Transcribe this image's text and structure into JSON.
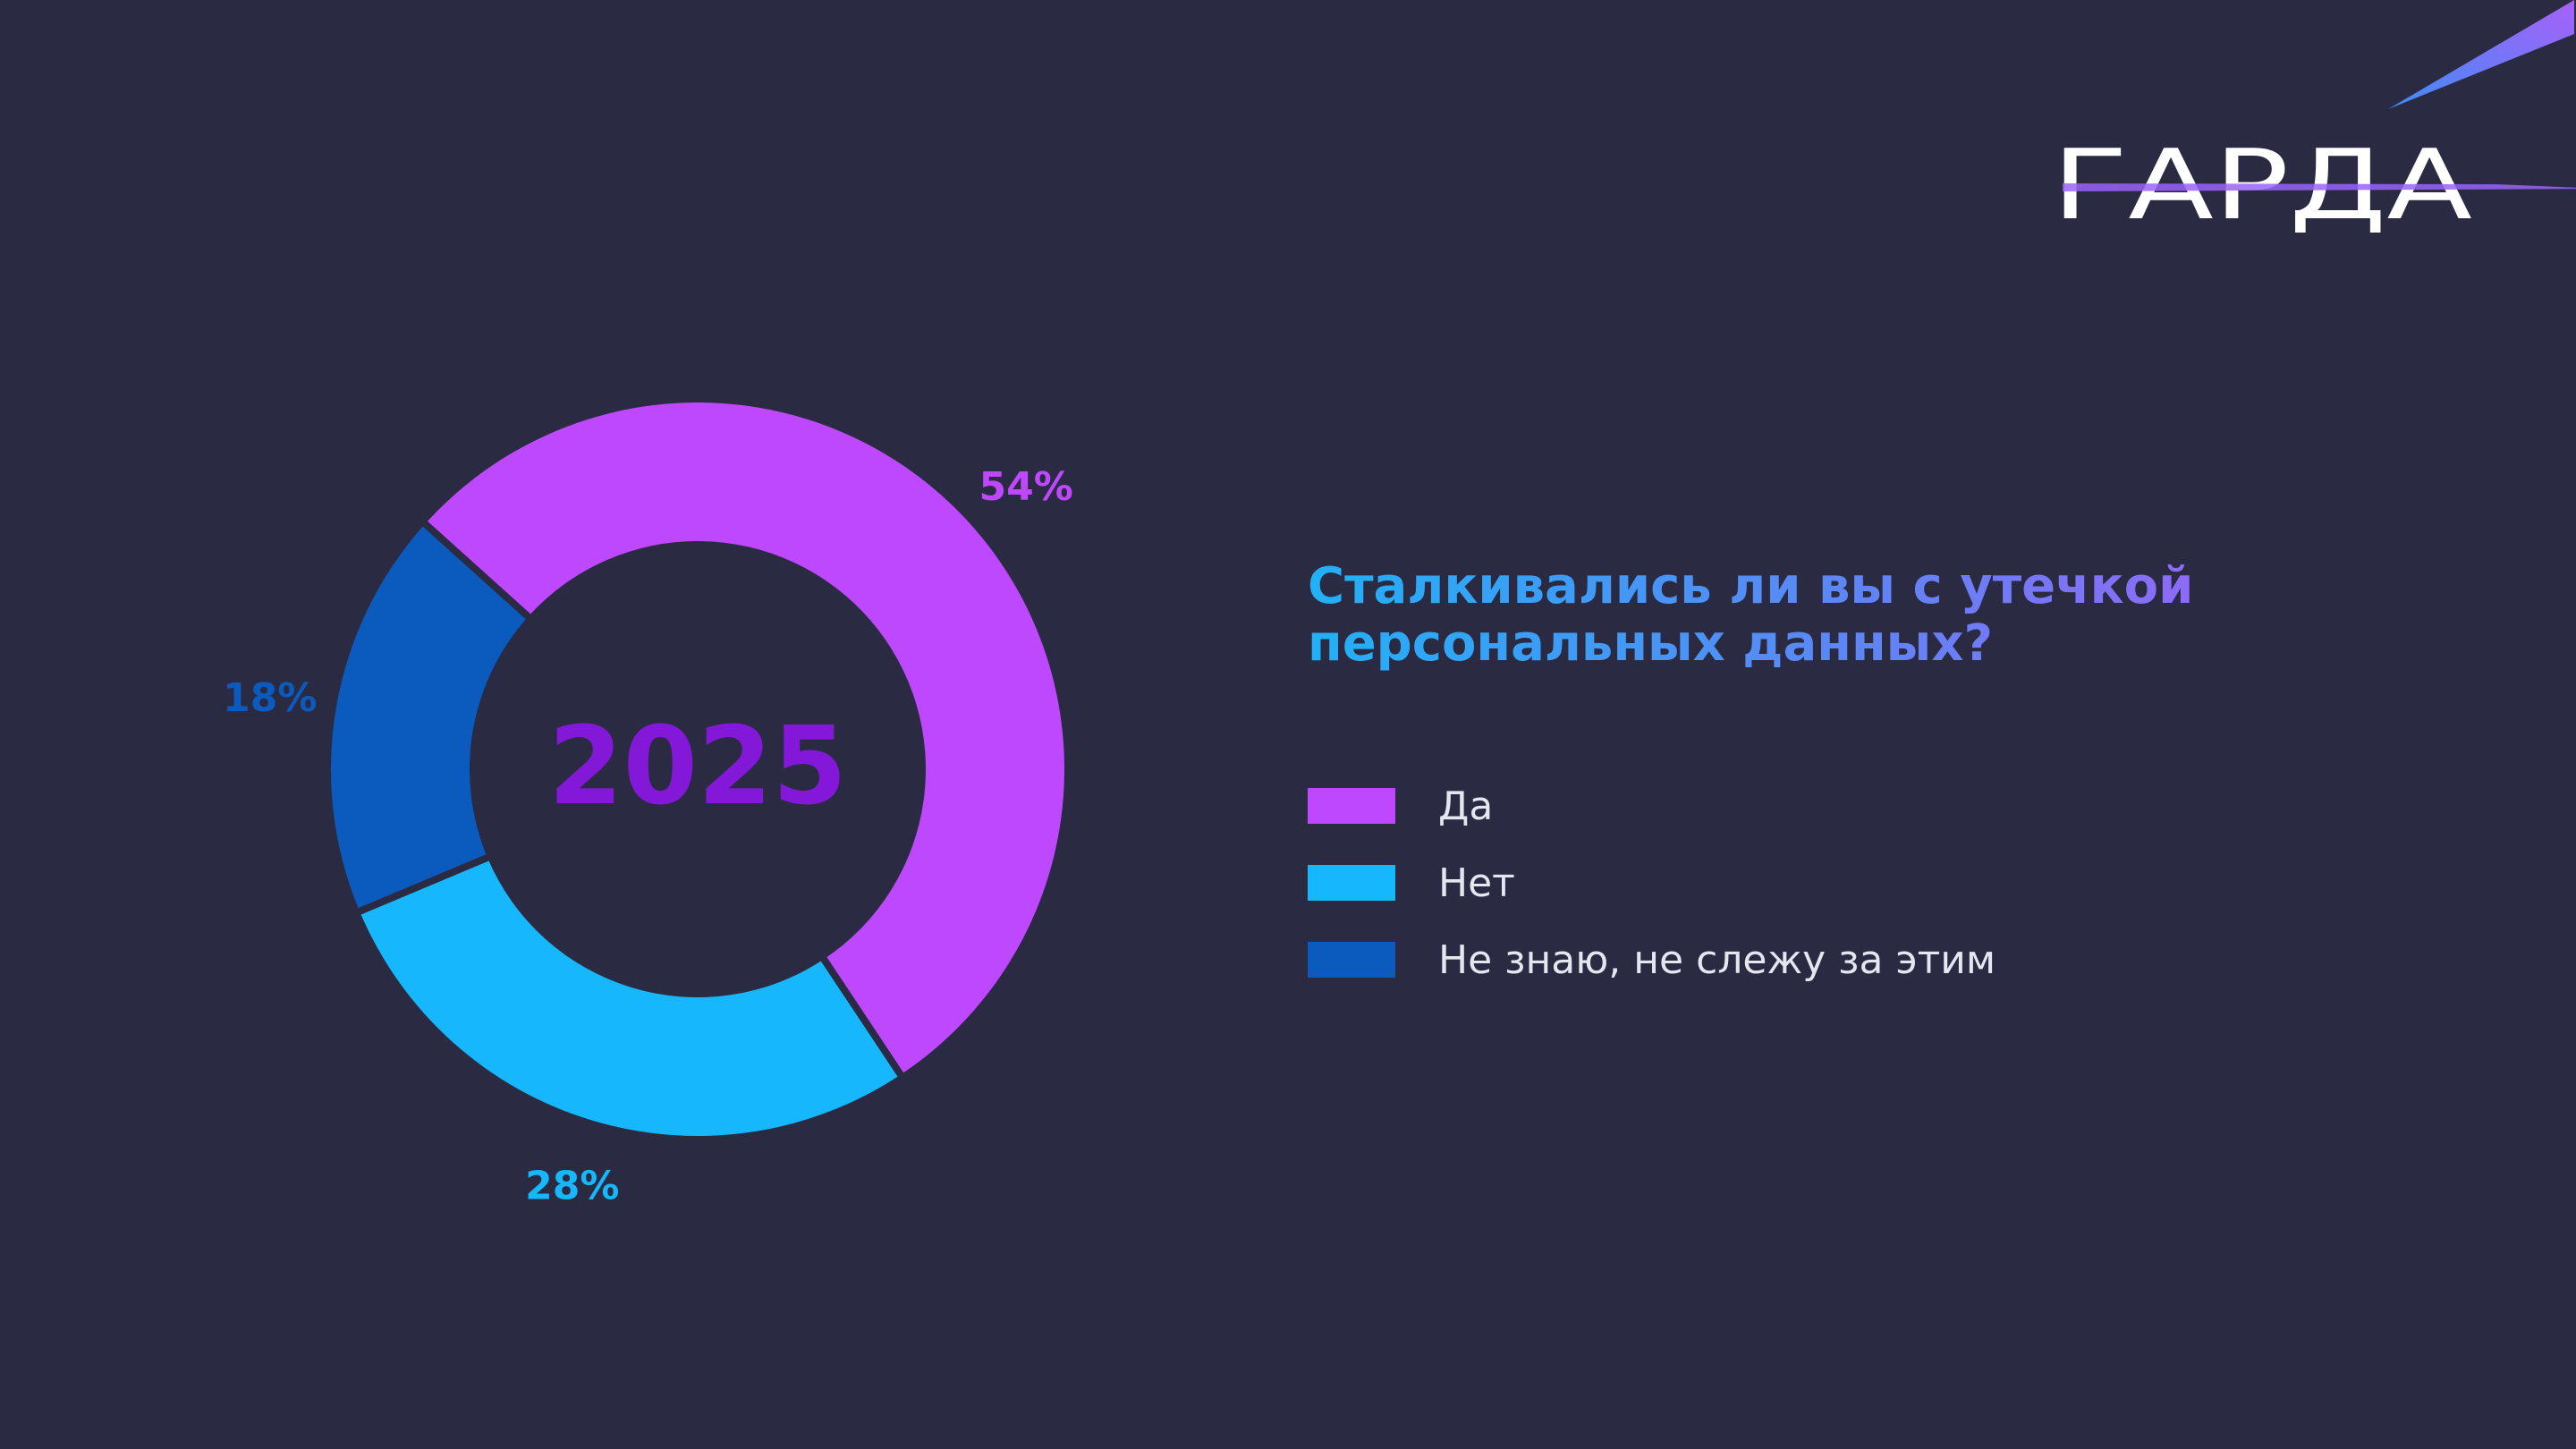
{
  "logo": {
    "text": "ГАРДА",
    "color": "#ffffff",
    "accent": "#9a63f8"
  },
  "question": {
    "line1": "Сталкивались ли вы с утечкой",
    "line2": "персональных данных?"
  },
  "colors": {
    "background": "#2a2b42",
    "yes": "#bd48fd",
    "no": "#16b7fc",
    "dont_know": "#0b5bbf",
    "year": "#8418d8"
  },
  "chart_data": {
    "type": "pie",
    "title": "2025",
    "categories": [
      "Да",
      "Нет",
      "Не знаю, не слежу за этим"
    ],
    "values": [
      54,
      28,
      18
    ],
    "labels": [
      "54%",
      "28%",
      "18%"
    ],
    "colors": [
      "#bd48fd",
      "#16b7fc",
      "#0b5bbf"
    ],
    "legend_position": "right"
  }
}
